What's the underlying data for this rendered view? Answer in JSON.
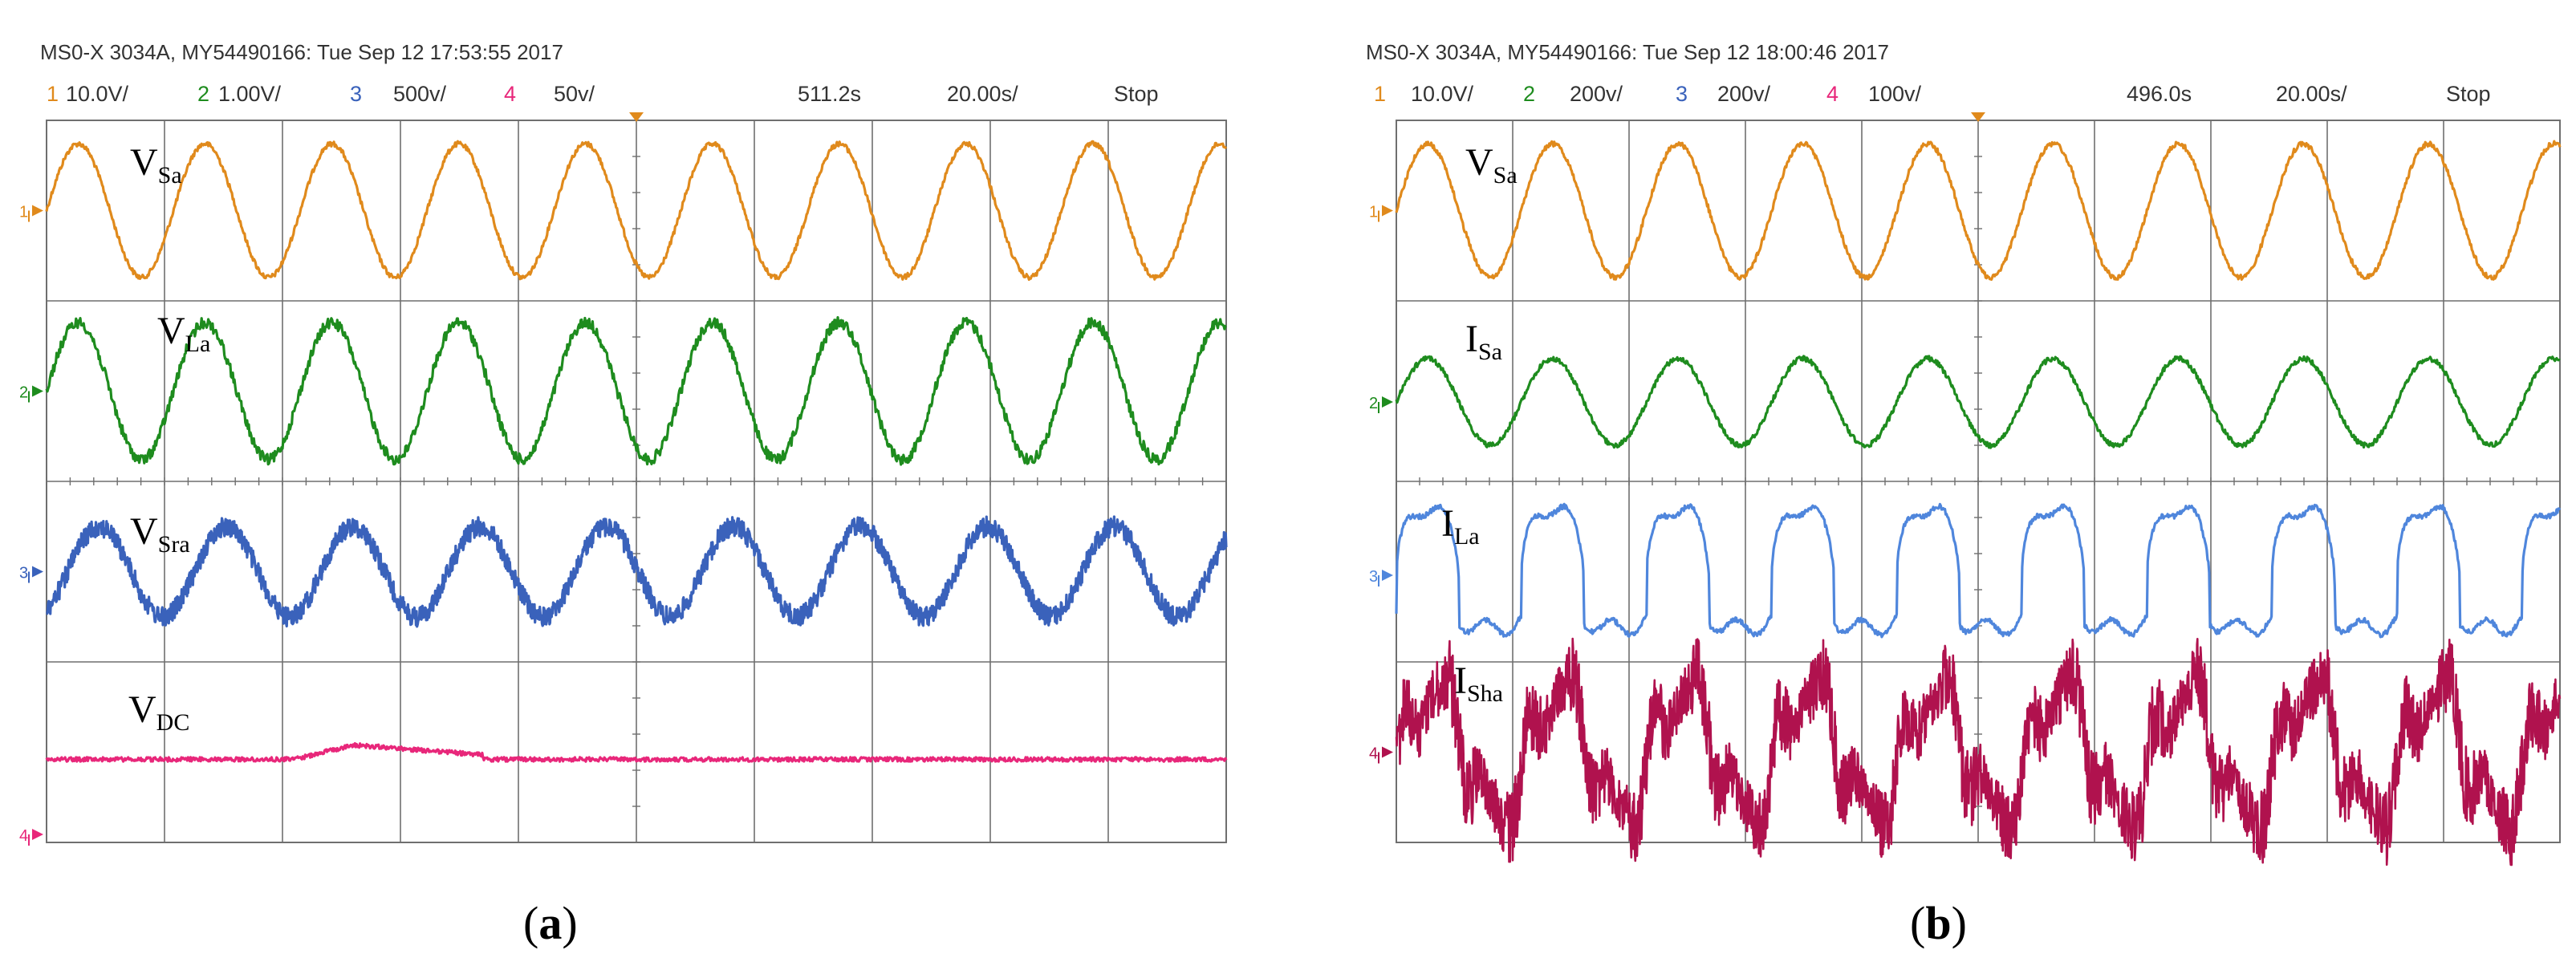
{
  "colors": {
    "ch1": "#e08a1c",
    "ch2": "#1e8c1e",
    "ch3": "#3a62bb",
    "ch3_light": "#4f86dc",
    "ch4": "#e8277a",
    "ch4_dark": "#b0124e",
    "grid": "#6f6f6f"
  },
  "chart_data": [
    {
      "type": "line",
      "caption": "(a)",
      "caption_letter": "a",
      "header": "MS0-X 3034A, MY54490166: Tue Sep 12 17:53:55 2017",
      "settings": {
        "ch1": {
          "num": "1",
          "scale": "10.0V/"
        },
        "ch2": {
          "num": "2",
          "scale": "1.00V/"
        },
        "ch3": {
          "num": "3",
          "scale": "500v/"
        },
        "ch4": {
          "num": "4",
          "scale": "50v/"
        },
        "delay": "511.2s",
        "timebase": "20.00s/",
        "status": "Stop"
      },
      "grid": {
        "divisions_x": 10,
        "divisions_y": 4
      },
      "cycles_on_screen": 9.3,
      "series": [
        {
          "name": "V",
          "sub": "Sa",
          "marker": "1",
          "color": "ch1",
          "waveform": "sine",
          "amplitude_div": 0.37,
          "center_div": 0.5,
          "phase_deg": 0,
          "noise": "low"
        },
        {
          "name": "V",
          "sub": "La",
          "marker": "2",
          "color": "ch2",
          "waveform": "sine",
          "amplitude_div": 0.38,
          "center_div": 1.5,
          "phase_deg": 0,
          "noise": "medium"
        },
        {
          "name": "V",
          "sub": "Sra",
          "marker": "3",
          "color": "ch3",
          "waveform": "sine",
          "amplitude_div": 0.25,
          "center_div": 2.5,
          "phase_deg": -60,
          "noise": "high"
        },
        {
          "name": "V",
          "sub": "DC",
          "marker": "4",
          "color": "ch4",
          "waveform": "dc",
          "center_div": 3.54,
          "bump": {
            "start_div": 2.1,
            "peak_div": 2.6,
            "end_div": 3.7,
            "height_div": 0.08
          }
        }
      ]
    },
    {
      "type": "line",
      "caption": "(b)",
      "caption_letter": "b",
      "header": "MS0-X 3034A, MY54490166: Tue Sep 12 18:00:46 2017",
      "settings": {
        "ch1": {
          "num": "1",
          "scale": "10.0V/"
        },
        "ch2": {
          "num": "2",
          "scale": "200v/"
        },
        "ch3": {
          "num": "3",
          "scale": "200v/"
        },
        "ch4": {
          "num": "4",
          "scale": "100v/"
        },
        "delay": "496.0s",
        "timebase": "20.00s/",
        "status": "Stop"
      },
      "grid": {
        "divisions_x": 10,
        "divisions_y": 4
      },
      "cycles_on_screen": 9.3,
      "series": [
        {
          "name": "V",
          "sub": "Sa",
          "marker": "1",
          "color": "ch1",
          "waveform": "sine",
          "amplitude_div": 0.37,
          "center_div": 0.5,
          "phase_deg": 0,
          "noise": "low"
        },
        {
          "name": "I",
          "sub": "Sa",
          "marker": "2",
          "color": "ch2",
          "waveform": "sine",
          "amplitude_div": 0.24,
          "center_div": 1.56,
          "phase_deg": 0,
          "noise": "low"
        },
        {
          "name": "I",
          "sub": "La",
          "marker": "3",
          "color": "ch3_light",
          "waveform": "rectified",
          "amplitude_div": 0.4,
          "center_div": 2.52,
          "phase_deg": 0,
          "noise": "low"
        },
        {
          "name": "I",
          "sub": "Sha",
          "marker": "4",
          "color": "ch4_dark",
          "waveform": "harmonic",
          "amplitude_div": 0.44,
          "center_div": 3.5,
          "phase_deg": 0,
          "noise": "very-high"
        }
      ]
    }
  ]
}
